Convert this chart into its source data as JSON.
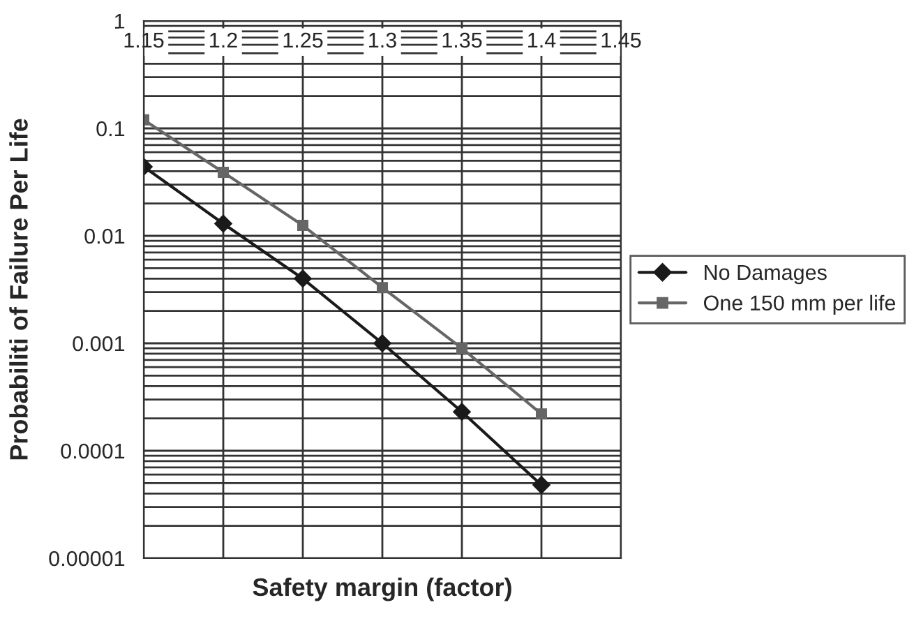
{
  "chart_data": {
    "type": "line",
    "xlabel": "Safety margin (factor)",
    "ylabel": "Probabiliti of Failure Per Life",
    "x": [
      1.15,
      1.2,
      1.25,
      1.3,
      1.35,
      1.4
    ],
    "series": [
      {
        "name": "No Damages",
        "color": "#1a1a1a",
        "marker": "diamond",
        "values": [
          0.044,
          0.013,
          0.004,
          0.001,
          0.00023,
          4.8e-05
        ]
      },
      {
        "name": "One 150 mm per life",
        "color": "#666666",
        "marker": "square",
        "values": [
          0.12,
          0.039,
          0.0125,
          0.0033,
          0.0009,
          0.00022
        ]
      }
    ],
    "log": "y",
    "xlim": [
      1.15,
      1.45
    ],
    "xticks": [
      1.15,
      1.2,
      1.25,
      1.3,
      1.35,
      1.4,
      1.45
    ],
    "ylim": [
      1e-05,
      1
    ],
    "yticks": [
      {
        "value": 1e-05,
        "label": "0.00001"
      },
      {
        "value": 0.0001,
        "label": "0.0001"
      },
      {
        "value": 0.001,
        "label": "0.001"
      },
      0.01,
      0.1,
      1
    ],
    "grid": true,
    "legend": "right",
    "line_style": "solid"
  }
}
